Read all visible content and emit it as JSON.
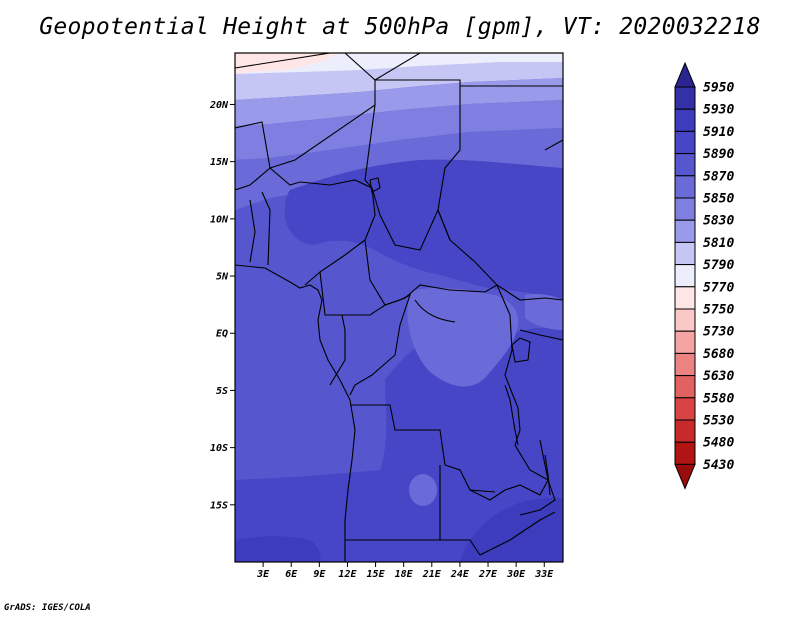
{
  "title": "Geopotential Height at 500hPa [gpm], VT: 2020032218",
  "credit": "GrADS: IGES/COLA",
  "map": {
    "lon_range": [
      0,
      35
    ],
    "lat_range": [
      -20,
      24.5
    ],
    "lat_ticks": [
      {
        "value": 20,
        "label": "20N"
      },
      {
        "value": 15,
        "label": "15N"
      },
      {
        "value": 10,
        "label": "10N"
      },
      {
        "value": 5,
        "label": "5N"
      },
      {
        "value": 0,
        "label": "EQ"
      },
      {
        "value": -5,
        "label": "5S"
      },
      {
        "value": -10,
        "label": "10S"
      },
      {
        "value": -15,
        "label": "15S"
      }
    ],
    "lon_ticks": [
      {
        "value": 3,
        "label": "3E"
      },
      {
        "value": 6,
        "label": "6E"
      },
      {
        "value": 9,
        "label": "9E"
      },
      {
        "value": 12,
        "label": "12E"
      },
      {
        "value": 15,
        "label": "15E"
      },
      {
        "value": 18,
        "label": "18E"
      },
      {
        "value": 21,
        "label": "21E"
      },
      {
        "value": 24,
        "label": "24E"
      },
      {
        "value": 27,
        "label": "27E"
      },
      {
        "value": 30,
        "label": "30E"
      },
      {
        "value": 33,
        "label": "33E"
      }
    ]
  },
  "colorbar": {
    "levels": [
      5950,
      5930,
      5910,
      5890,
      5870,
      5850,
      5830,
      5810,
      5790,
      5770,
      5750,
      5730,
      5680,
      5630,
      5580,
      5530,
      5480,
      5430
    ],
    "colors": [
      "#2a2590",
      "#3330a8",
      "#3c3cbc",
      "#4646c6",
      "#5656cf",
      "#6a6ad8",
      "#7f7fe2",
      "#9a9aea",
      "#c6c6f4",
      "#eceefc",
      "#ffe6e6",
      "#fbc8c8",
      "#f4a4a4",
      "#ec8282",
      "#e26262",
      "#d84444",
      "#c82a2a",
      "#b21414",
      "#9a0c0c"
    ]
  },
  "chart_data": {
    "type": "heatmap",
    "title": "Geopotential Height at 500hPa [gpm], VT: 2020032218",
    "units": "gpm",
    "x_range": [
      0,
      35
    ],
    "y_range": [
      -20,
      24.5
    ],
    "x_ticks": [
      "3E",
      "6E",
      "9E",
      "12E",
      "15E",
      "18E",
      "21E",
      "24E",
      "27E",
      "30E",
      "33E"
    ],
    "y_ticks": [
      "20N",
      "15N",
      "10N",
      "5N",
      "EQ",
      "5S",
      "10S",
      "15S"
    ],
    "regions": [
      {
        "area": "far north-west corner",
        "value_range": [
          5770,
          5790
        ]
      },
      {
        "area": "northern strip near 22-24N",
        "value_range": [
          5790,
          5830
        ]
      },
      {
        "area": "20N band",
        "value_range": [
          5830,
          5850
        ]
      },
      {
        "area": "15N-18N band",
        "value_range": [
          5850,
          5870
        ]
      },
      {
        "area": "western and central interior",
        "value_range": [
          5870,
          5890
        ]
      },
      {
        "area": "Sudan / central Africa core",
        "value_range": [
          5890,
          5910
        ]
      },
      {
        "area": "southern Africa 10S-20S",
        "value_range": [
          5890,
          5910
        ]
      },
      {
        "area": "south-east corner near 30E 17S",
        "value_range": [
          5910,
          5930
        ]
      }
    ],
    "colorbar_levels": [
      5950,
      5930,
      5910,
      5890,
      5870,
      5850,
      5830,
      5810,
      5790,
      5770,
      5750,
      5730,
      5680,
      5630,
      5580,
      5530,
      5480,
      5430
    ]
  }
}
